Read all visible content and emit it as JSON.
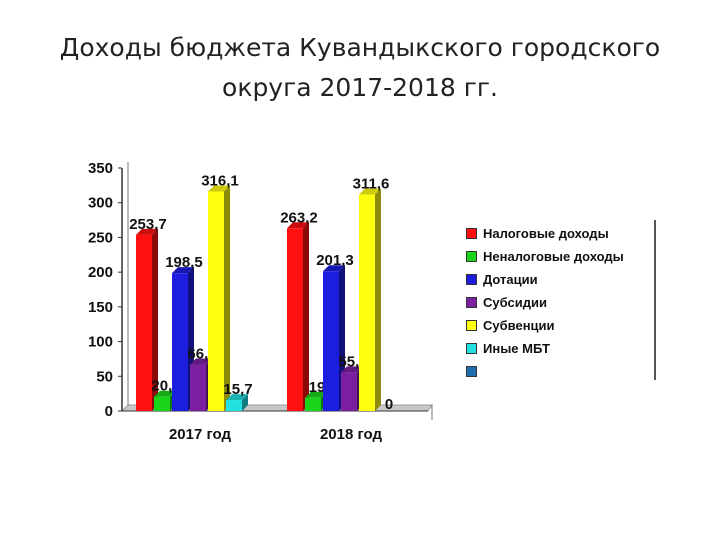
{
  "slide": {
    "title_line1": "Доходы бюджета Кувандыкского городского",
    "title_line2": "округа 2017-2018 гг."
  },
  "chart_data": {
    "type": "bar",
    "categories": [
      "2017 год",
      "2018 год"
    ],
    "series": [
      {
        "name": "Налоговые доходы",
        "color": "#ff1010",
        "values": [
          253.7,
          263.2
        ],
        "labels": [
          "253,7",
          "263,2"
        ]
      },
      {
        "name": "Неналоговые доходы",
        "color": "#19d419",
        "values": [
          20.6,
          19
        ],
        "labels": [
          "20,6",
          "19"
        ]
      },
      {
        "name": "Дотации",
        "color": "#1d1de0",
        "values": [
          198.5,
          201.3
        ],
        "labels": [
          "198,5",
          "201,3"
        ]
      },
      {
        "name": "Субсидии",
        "color": "#7a1fa0",
        "values": [
          66.9,
          55.6
        ],
        "labels": [
          "66,9",
          "55,6"
        ]
      },
      {
        "name": "Субвенции",
        "color": "#ffff10",
        "values": [
          316.1,
          311.6
        ],
        "labels": [
          "316,1",
          "311,6"
        ]
      },
      {
        "name": "Иные МБТ",
        "color": "#20e0e0",
        "values": [
          15.7,
          0
        ],
        "labels": [
          "15,7",
          "0"
        ]
      },
      {
        "name": "",
        "color": "#1f6fb0",
        "values": [
          0,
          0
        ],
        "labels": [
          "",
          ""
        ]
      }
    ],
    "yticks": [
      "0",
      "50",
      "100",
      "150",
      "200",
      "250",
      "300",
      "350"
    ],
    "ylim": [
      0,
      350
    ],
    "grid": false,
    "legend_position": "right"
  }
}
